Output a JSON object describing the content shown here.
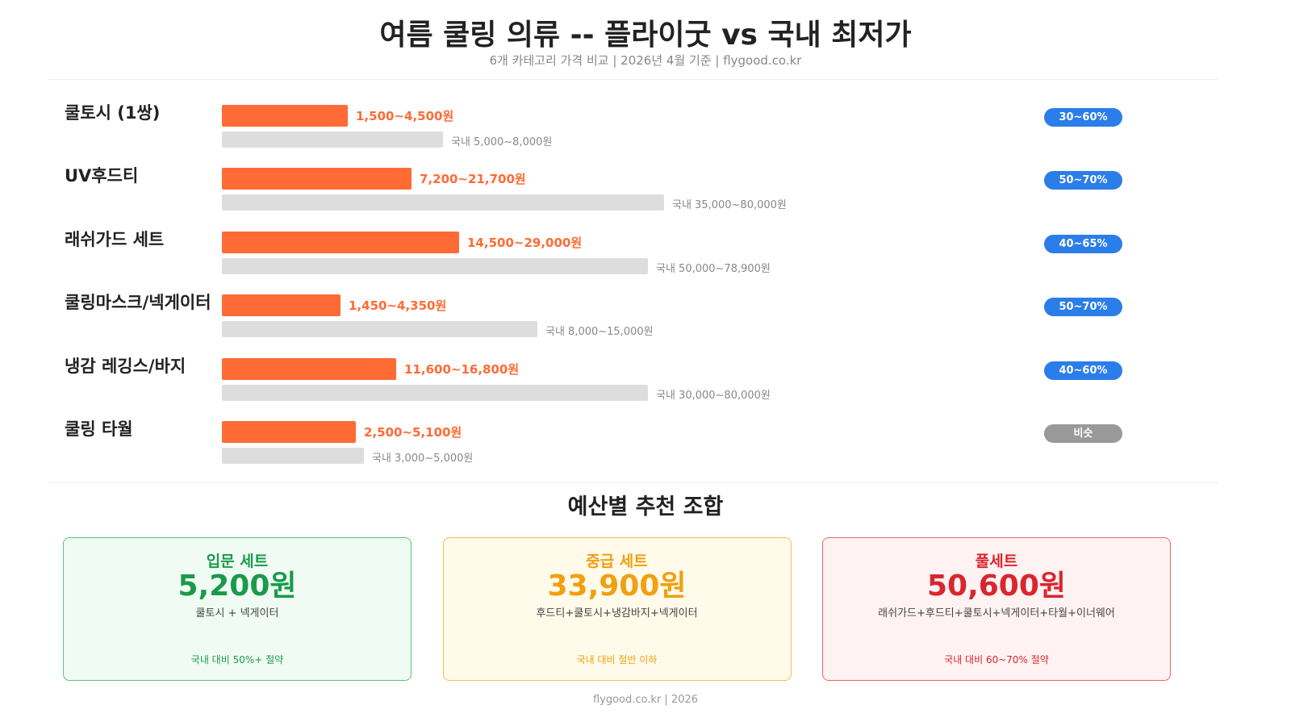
{
  "header": {
    "title": "여름 쿨링 의류 -- 플라이굿 vs 국내 최저가",
    "subtitle": "6개 카테고리 가격 비교 | 2026년 4월 기준 | flygood.co.kr"
  },
  "rows": [
    {
      "label": "쿨토시 (1쌍)",
      "price": "1,500~4,500원",
      "domestic": "국내 5,000~8,000원",
      "badge": "30~60%"
    },
    {
      "label": "UV후드티",
      "price": "7,200~21,700원",
      "domestic": "국내 35,000~80,000원",
      "badge": "50~70%"
    },
    {
      "label": "래쉬가드 세트",
      "price": "14,500~29,000원",
      "domestic": "국내 50,000~78,900원",
      "badge": "40~65%"
    },
    {
      "label": "쿨링마스크/넥게이터",
      "price": "1,450~4,350원",
      "domestic": "국내 8,000~15,000원",
      "badge": "50~70%"
    },
    {
      "label": "냉감 레깅스/바지",
      "price": "11,600~16,800원",
      "domestic": "국내 30,000~80,000원",
      "badge": "40~60%"
    },
    {
      "label": "쿨링 타월",
      "price": "2,500~5,100원",
      "domestic": "국내 3,000~5,000원",
      "badge": "비슷"
    }
  ],
  "section_title": "예산별 추천 조합",
  "cards": [
    {
      "title": "입문 세트",
      "price": "5,200원",
      "items": "쿨토시 + 넥게이터",
      "note": "국내 대비 50%+ 절약"
    },
    {
      "title": "중급 세트",
      "price": "33,900원",
      "items": "후드티+쿨토시+냉감바지+넥게이터",
      "note": "국내 대비 절반 이하"
    },
    {
      "title": "풀세트",
      "price": "50,600원",
      "items": "래쉬가드+후드티+쿨토시+넥게이터+타월+이너웨어",
      "note": "국내 대비 60~70% 절약"
    }
  ],
  "footer": "flygood.co.kr | 2026"
}
